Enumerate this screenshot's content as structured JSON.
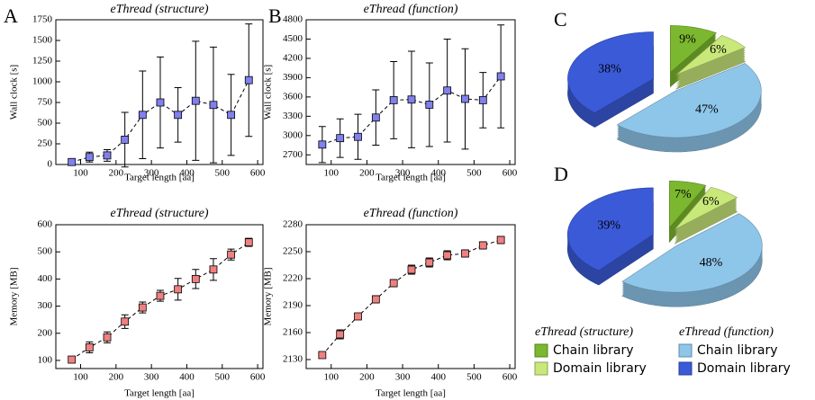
{
  "panels": [
    "A",
    "B",
    "C",
    "D"
  ],
  "chart_data": [
    {
      "type": "scatter",
      "title": "eThread (structure)",
      "x_label": "Target length [aa]",
      "y_label": "Wall clock [s]",
      "x": [
        75,
        125,
        175,
        225,
        275,
        325,
        375,
        425,
        475,
        525,
        575
      ],
      "values": [
        30,
        90,
        110,
        300,
        600,
        750,
        600,
        770,
        720,
        600,
        1020
      ],
      "errors": [
        20,
        60,
        70,
        330,
        530,
        550,
        330,
        720,
        700,
        490,
        680
      ],
      "color": "#8080ee",
      "xlim": [
        30,
        615
      ],
      "xticks": [
        100,
        200,
        300,
        400,
        500,
        600
      ],
      "ylim": [
        0,
        1750
      ],
      "yticks": [
        0,
        250,
        500,
        750,
        1000,
        1250,
        1500,
        1750
      ]
    },
    {
      "type": "scatter",
      "title": "eThread (function)",
      "x_label": "Target length [aa]",
      "y_label": "Wall clock [s]",
      "x": [
        75,
        125,
        175,
        225,
        275,
        325,
        375,
        425,
        475,
        525,
        575
      ],
      "values": [
        2860,
        2960,
        2980,
        3280,
        3550,
        3560,
        3480,
        3700,
        3570,
        3550,
        3920
      ],
      "errors": [
        280,
        300,
        350,
        430,
        600,
        750,
        650,
        800,
        780,
        430,
        800
      ],
      "color": "#8080ee",
      "xlim": [
        30,
        615
      ],
      "xticks": [
        100,
        200,
        300,
        400,
        500,
        600
      ],
      "ylim": [
        2550,
        4800
      ],
      "yticks": [
        2700,
        3000,
        3300,
        3600,
        3900,
        4200,
        4500,
        4800
      ]
    },
    {
      "type": "scatter",
      "title": "eThread (structure)",
      "x_label": "Target length [aa]",
      "y_label": "Memory [MB]",
      "x": [
        75,
        125,
        175,
        225,
        275,
        325,
        375,
        425,
        475,
        525,
        575
      ],
      "values": [
        103,
        148,
        185,
        243,
        295,
        338,
        362,
        400,
        435,
        490,
        535
      ],
      "errors": [
        10,
        20,
        20,
        25,
        20,
        20,
        40,
        35,
        40,
        20,
        15
      ],
      "color": "#f08080",
      "xlim": [
        30,
        615
      ],
      "xticks": [
        100,
        200,
        300,
        400,
        500,
        600
      ],
      "ylim": [
        70,
        600
      ],
      "yticks": [
        100,
        200,
        300,
        400,
        500,
        600
      ]
    },
    {
      "type": "scatter",
      "title": "eThread (function)",
      "x_label": "Target length [aa]",
      "y_label": "Memory [MB]",
      "x": [
        75,
        125,
        175,
        225,
        275,
        325,
        375,
        425,
        475,
        525,
        575
      ],
      "values": [
        2135,
        2158,
        2178,
        2197,
        2215,
        2230,
        2238,
        2246,
        2248,
        2257,
        2263
      ],
      "errors": [
        3,
        5,
        3,
        4,
        4,
        5,
        5,
        5,
        4,
        4,
        4
      ],
      "color": "#f08080",
      "xlim": [
        30,
        615
      ],
      "xticks": [
        100,
        200,
        300,
        400,
        500,
        600
      ],
      "ylim": [
        2120,
        2280
      ],
      "yticks": [
        2130,
        2160,
        2190,
        2220,
        2250,
        2280
      ]
    },
    {
      "type": "pie",
      "values": [
        9,
        6,
        47,
        38
      ],
      "value_labels": [
        "9%",
        "6%",
        "47%",
        "38%"
      ],
      "colors": [
        "#7cb82f",
        "#c8e87a",
        "#8ec6ea",
        "#3a5ad8"
      ]
    },
    {
      "type": "pie",
      "values": [
        7,
        6,
        48,
        39
      ],
      "value_labels": [
        "7%",
        "6%",
        "48%",
        "39%"
      ],
      "colors": [
        "#7cb82f",
        "#c8e87a",
        "#8ec6ea",
        "#3a5ad8"
      ]
    }
  ],
  "legend": [
    {
      "title": "eThread (structure)",
      "items": [
        {
          "label": "Chain library",
          "color": "#7cb82f"
        },
        {
          "label": "Domain library",
          "color": "#c8e87a"
        }
      ]
    },
    {
      "title": "eThread (function)",
      "items": [
        {
          "label": "Chain library",
          "color": "#8ec6ea"
        },
        {
          "label": "Domain library",
          "color": "#3a5ad8"
        }
      ]
    }
  ]
}
